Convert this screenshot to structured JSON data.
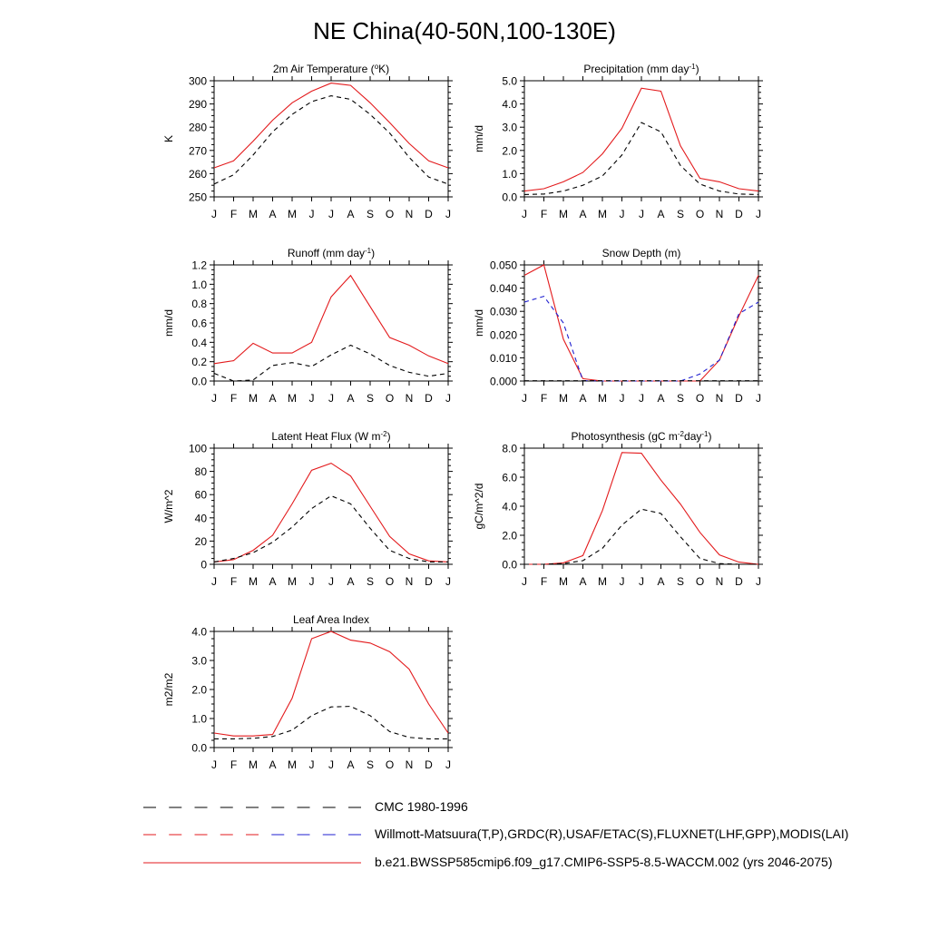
{
  "page_title": "NE China(40-50N,100-130E)",
  "month_labels": [
    "J",
    "F",
    "M",
    "A",
    "M",
    "J",
    "J",
    "A",
    "S",
    "O",
    "N",
    "D",
    "J"
  ],
  "colors": {
    "model": "#e31a1c",
    "obs_willmott": "#e31a1c",
    "obs_snow": "#1f1fd0",
    "cmc": "#000000"
  },
  "legend": [
    {
      "label": "CMC 1980-1996",
      "style": "dashed",
      "colors": [
        "#000000"
      ]
    },
    {
      "label": "Willmott-Matsuura(T,P),GRDC(R),USAF/ETAC(S),FLUXNET(LHF,GPP),MODIS(LAI)",
      "style": "dashed",
      "colors": [
        "#e31a1c",
        "#1f1fd0"
      ]
    },
    {
      "label": "b.e21.BWSSP585cmip6.f09_g17.CMIP6-SSP5-8.5-WACCM.002 (yrs 2046-2075)",
      "style": "solid",
      "colors": [
        "#e31a1c"
      ]
    }
  ],
  "chart_data": [
    {
      "type": "line",
      "title": "2m Air Temperature (",
      "title_sup": "o",
      "title_after": "K)",
      "ylabel": "K",
      "ylim": [
        250,
        300
      ],
      "yticks": [
        "250",
        "260",
        "270",
        "280",
        "290",
        "300"
      ],
      "x": [
        "J",
        "F",
        "M",
        "A",
        "M",
        "J",
        "J",
        "A",
        "S",
        "O",
        "N",
        "D",
        "J"
      ],
      "series": [
        {
          "role": "model",
          "color": "#e31a1c",
          "dash": "solid",
          "values": [
            262.5,
            265.5,
            274,
            283,
            290.5,
            295.5,
            299,
            298,
            290.5,
            282,
            273,
            265.5,
            262.5
          ]
        },
        {
          "role": "obs",
          "color": "#000000",
          "dash": "dashed",
          "values": [
            255.5,
            259.5,
            268,
            278,
            285.5,
            291,
            293.5,
            292,
            285.5,
            277.5,
            267,
            258.5,
            255.5
          ]
        }
      ]
    },
    {
      "type": "line",
      "title": "Precipitation (mm day",
      "title_sup": "-1",
      "title_after": ")",
      "ylabel": "mm/d",
      "ylim": [
        0,
        5
      ],
      "yticks": [
        "0.0",
        "1.0",
        "2.0",
        "3.0",
        "4.0",
        "5.0"
      ],
      "x": [
        "J",
        "F",
        "M",
        "A",
        "M",
        "J",
        "J",
        "A",
        "S",
        "O",
        "N",
        "D",
        "J"
      ],
      "series": [
        {
          "role": "model",
          "color": "#e31a1c",
          "dash": "solid",
          "values": [
            0.25,
            0.35,
            0.65,
            1.05,
            1.85,
            2.95,
            4.68,
            4.55,
            2.2,
            0.8,
            0.65,
            0.35,
            0.25
          ]
        },
        {
          "role": "obs",
          "color": "#000000",
          "dash": "dashed",
          "values": [
            0.1,
            0.12,
            0.25,
            0.5,
            0.9,
            1.8,
            3.2,
            2.8,
            1.35,
            0.55,
            0.25,
            0.12,
            0.1
          ]
        }
      ]
    },
    {
      "type": "line",
      "title": "Runoff (mm day",
      "title_sup": "-1",
      "title_after": ")",
      "ylabel": "mm/d",
      "ylim": [
        0,
        1.2
      ],
      "yticks": [
        "0.0",
        "0.2",
        "0.4",
        "0.6",
        "0.8",
        "1.0",
        "1.2"
      ],
      "x": [
        "J",
        "F",
        "M",
        "A",
        "M",
        "J",
        "J",
        "A",
        "S",
        "O",
        "N",
        "D",
        "J"
      ],
      "series": [
        {
          "role": "model",
          "color": "#e31a1c",
          "dash": "solid",
          "values": [
            0.18,
            0.21,
            0.39,
            0.29,
            0.29,
            0.4,
            0.87,
            1.09,
            0.77,
            0.45,
            0.37,
            0.26,
            0.18
          ]
        },
        {
          "role": "obs",
          "color": "#000000",
          "dash": "dashed",
          "values": [
            0.08,
            0.0,
            0.01,
            0.16,
            0.19,
            0.15,
            0.27,
            0.37,
            0.28,
            0.16,
            0.09,
            0.05,
            0.08
          ]
        }
      ]
    },
    {
      "type": "line",
      "title": "Snow Depth (m)",
      "title_sup": "",
      "title_after": "",
      "ylabel": "mm/d",
      "ylim": [
        0,
        0.05
      ],
      "yticks": [
        "0.000",
        "0.010",
        "0.020",
        "0.030",
        "0.040",
        "0.050"
      ],
      "x": [
        "J",
        "F",
        "M",
        "A",
        "M",
        "J",
        "J",
        "A",
        "S",
        "O",
        "N",
        "D",
        "J"
      ],
      "series": [
        {
          "role": "model",
          "color": "#e31a1c",
          "dash": "solid",
          "values": [
            0.0455,
            0.05,
            0.018,
            0.001,
            0.0,
            0.0,
            0.0,
            0.0,
            0.0,
            0.0,
            0.009,
            0.028,
            0.0455
          ]
        },
        {
          "role": "obs",
          "color": "#1f1fd0",
          "dash": "dashed",
          "values": [
            0.034,
            0.0365,
            0.025,
            0.0002,
            0.0,
            0.0,
            0.0,
            0.0,
            0.0,
            0.003,
            0.009,
            0.029,
            0.034
          ]
        },
        {
          "role": "cmc",
          "color": "#000000",
          "dash": "dashed",
          "values": [
            0.0001,
            0.0001,
            0.0001,
            0.0001,
            0.0001,
            0.0001,
            0.0001,
            0.0001,
            0.0001,
            0.0001,
            0.0001,
            0.0001,
            0.0001
          ]
        }
      ]
    },
    {
      "type": "line",
      "title": "Latent Heat Flux (W m",
      "title_sup": "-2",
      "title_after": ")",
      "ylabel": "W/m^2",
      "ylim": [
        0,
        100
      ],
      "yticks": [
        "0",
        "20",
        "40",
        "60",
        "80",
        "100"
      ],
      "x": [
        "J",
        "F",
        "M",
        "A",
        "M",
        "J",
        "J",
        "A",
        "S",
        "O",
        "N",
        "D",
        "J"
      ],
      "series": [
        {
          "role": "model",
          "color": "#e31a1c",
          "dash": "solid",
          "values": [
            2,
            4,
            12,
            25,
            52,
            81,
            87,
            76,
            50,
            24,
            9,
            3,
            2
          ]
        },
        {
          "role": "obs",
          "color": "#000000",
          "dash": "dashed",
          "values": [
            2,
            5,
            10,
            19,
            32,
            48,
            59,
            52,
            31,
            12,
            5,
            2,
            2
          ]
        }
      ]
    },
    {
      "type": "line",
      "title": "Photosynthesis (gC m",
      "title_sup": "-2",
      "title_after": "day",
      "title_sup2": "-1",
      "title_after2": ")",
      "ylabel": "gC/m^2/d",
      "ylim": [
        0,
        8
      ],
      "yticks": [
        "0.0",
        "2.0",
        "4.0",
        "6.0",
        "8.0"
      ],
      "x": [
        "J",
        "F",
        "M",
        "A",
        "M",
        "J",
        "J",
        "A",
        "S",
        "O",
        "N",
        "D",
        "J"
      ],
      "series": [
        {
          "role": "model",
          "color": "#e31a1c",
          "dash": "solid",
          "values": [
            0.0,
            0.0,
            0.1,
            0.6,
            3.7,
            7.7,
            7.65,
            5.8,
            4.15,
            2.2,
            0.65,
            0.15,
            0.0
          ]
        },
        {
          "role": "obs",
          "color": "#000000",
          "dash": "dashed",
          "values": [
            0.0,
            0.0,
            0.05,
            0.25,
            1.1,
            2.7,
            3.8,
            3.5,
            1.9,
            0.4,
            0.05,
            0.0,
            0.0
          ]
        }
      ]
    },
    {
      "type": "line",
      "title": "Leaf Area Index",
      "title_sup": "",
      "title_after": "",
      "ylabel": "m2/m2",
      "ylim": [
        0,
        4
      ],
      "yticks": [
        "0.0",
        "1.0",
        "2.0",
        "3.0",
        "4.0"
      ],
      "x": [
        "J",
        "F",
        "M",
        "A",
        "M",
        "J",
        "J",
        "A",
        "S",
        "O",
        "N",
        "D",
        "J"
      ],
      "series": [
        {
          "role": "model",
          "color": "#e31a1c",
          "dash": "solid",
          "values": [
            0.5,
            0.4,
            0.4,
            0.45,
            1.7,
            3.75,
            4.0,
            3.7,
            3.6,
            3.3,
            2.7,
            1.5,
            0.5
          ]
        },
        {
          "role": "obs",
          "color": "#000000",
          "dash": "dashed",
          "values": [
            0.3,
            0.3,
            0.32,
            0.38,
            0.6,
            1.1,
            1.4,
            1.42,
            1.1,
            0.55,
            0.35,
            0.3,
            0.3
          ]
        }
      ]
    }
  ]
}
